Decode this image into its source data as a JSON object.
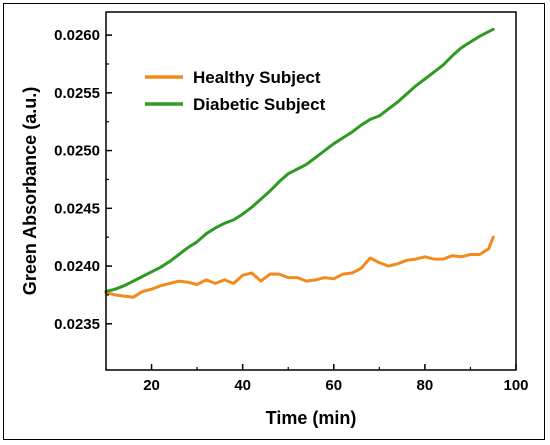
{
  "chart_data": {
    "type": "line",
    "title": "",
    "xlabel": "Time (min)",
    "ylabel": "Green Absorbance (a.u.)",
    "xlim": [
      10,
      100
    ],
    "ylim": [
      0.0231,
      0.0262
    ],
    "x_ticks": [
      20,
      40,
      60,
      80,
      100
    ],
    "y_ticks": [
      0.0235,
      0.024,
      0.0245,
      0.025,
      0.0255,
      0.026
    ],
    "x_tick_labels": [
      "20",
      "40",
      "60",
      "80",
      "100"
    ],
    "y_tick_labels": [
      "0.0235",
      "0.0240",
      "0.0245",
      "0.0250",
      "0.0255",
      "0.0260"
    ],
    "grid": false,
    "legend_position": "top-left",
    "series": [
      {
        "name": "Healthy Subject",
        "color": "#f28a1c",
        "x": [
          10,
          12,
          14,
          16,
          18,
          20,
          22,
          24,
          26,
          28,
          30,
          32,
          34,
          36,
          38,
          40,
          42,
          44,
          46,
          48,
          50,
          52,
          54,
          56,
          58,
          60,
          62,
          64,
          66,
          68,
          70,
          72,
          74,
          76,
          78,
          80,
          82,
          84,
          86,
          88,
          90,
          92,
          94,
          95
        ],
        "y": [
          0.02377,
          0.02375,
          0.02374,
          0.02373,
          0.02378,
          0.0238,
          0.02383,
          0.02385,
          0.02387,
          0.02386,
          0.02384,
          0.02388,
          0.02385,
          0.02388,
          0.02385,
          0.02392,
          0.02394,
          0.02387,
          0.02393,
          0.02393,
          0.0239,
          0.0239,
          0.02387,
          0.02388,
          0.0239,
          0.02389,
          0.02393,
          0.02394,
          0.02398,
          0.02407,
          0.02403,
          0.024,
          0.02402,
          0.02405,
          0.02406,
          0.02408,
          0.02406,
          0.02406,
          0.02409,
          0.02408,
          0.0241,
          0.0241,
          0.02415,
          0.02425
        ]
      },
      {
        "name": "Diabetic Subject",
        "color": "#2e9a23",
        "x": [
          10,
          12,
          14,
          16,
          18,
          20,
          22,
          24,
          26,
          28,
          30,
          32,
          34,
          36,
          38,
          40,
          42,
          44,
          46,
          48,
          50,
          52,
          54,
          56,
          58,
          60,
          62,
          64,
          66,
          68,
          70,
          72,
          74,
          76,
          78,
          80,
          82,
          84,
          86,
          88,
          90,
          92,
          94,
          95
        ],
        "y": [
          0.02378,
          0.0238,
          0.02383,
          0.02387,
          0.02391,
          0.02395,
          0.02399,
          0.02404,
          0.0241,
          0.02416,
          0.02421,
          0.02428,
          0.02433,
          0.02437,
          0.0244,
          0.02445,
          0.02451,
          0.02458,
          0.02465,
          0.02473,
          0.0248,
          0.02484,
          0.02488,
          0.02494,
          0.025,
          0.02506,
          0.02511,
          0.02516,
          0.02522,
          0.02527,
          0.0253,
          0.02536,
          0.02542,
          0.02549,
          0.02556,
          0.02562,
          0.02568,
          0.02574,
          0.02582,
          0.02589,
          0.02594,
          0.02599,
          0.02603,
          0.02605
        ]
      }
    ]
  }
}
